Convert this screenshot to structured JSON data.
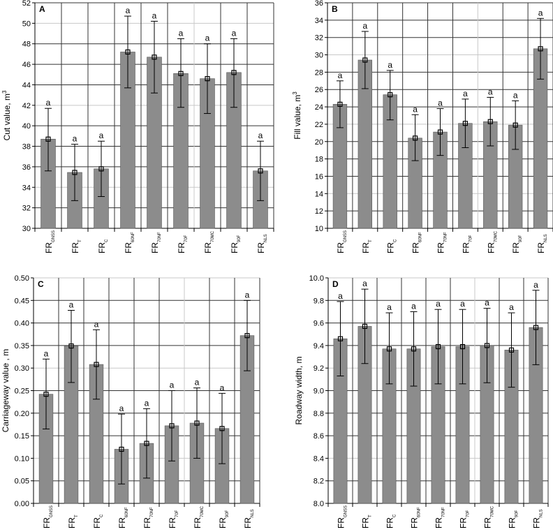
{
  "chart_data": [
    {
      "type": "bar",
      "panel": "A",
      "categories": [
        [
          "FR",
          "GNSS"
        ],
        [
          "FR",
          "T"
        ],
        [
          "FR",
          "C"
        ],
        [
          "FR",
          "60NF"
        ],
        [
          "FR",
          "70NF"
        ],
        [
          "FR",
          "70F"
        ],
        [
          "FR",
          "70MC"
        ],
        [
          "FR",
          "90F"
        ],
        [
          "FR",
          "NLS"
        ]
      ],
      "values": [
        38.7,
        35.45,
        35.8,
        47.2,
        46.7,
        45.1,
        44.6,
        45.2,
        35.6
      ],
      "error_low": [
        35.6,
        32.7,
        33.1,
        43.7,
        43.2,
        41.8,
        41.2,
        41.8,
        32.7
      ],
      "error_high": [
        41.7,
        38.2,
        38.5,
        50.7,
        50.2,
        48.5,
        48.0,
        48.5,
        38.5
      ],
      "group_labels": [
        "a",
        "a",
        "a",
        "a",
        "a",
        "a",
        "a",
        "a",
        "a"
      ],
      "ylabel": "Cut value, m",
      "ylabel_sup": "3",
      "ylim": [
        30,
        52
      ],
      "yticks": [
        30,
        32,
        34,
        36,
        38,
        40,
        42,
        44,
        46,
        48,
        50,
        52
      ],
      "ytick_decimals": 0,
      "grid": true
    },
    {
      "type": "bar",
      "panel": "B",
      "categories": [
        [
          "FR",
          "GNSS"
        ],
        [
          "FR",
          "T"
        ],
        [
          "FR",
          "C"
        ],
        [
          "FR",
          "60NF"
        ],
        [
          "FR",
          "70NF"
        ],
        [
          "FR",
          "70F"
        ],
        [
          "FR",
          "70MC"
        ],
        [
          "FR",
          "90F"
        ],
        [
          "FR",
          "NLS"
        ]
      ],
      "values": [
        24.3,
        29.4,
        25.4,
        20.4,
        21.1,
        22.1,
        22.3,
        21.9,
        30.7
      ],
      "error_low": [
        21.6,
        26.1,
        22.5,
        17.8,
        18.4,
        19.3,
        19.5,
        19.1,
        27.2
      ],
      "error_high": [
        27.0,
        32.7,
        28.2,
        23.1,
        23.8,
        24.9,
        25.1,
        24.7,
        34.2
      ],
      "group_labels": [
        "a",
        "a",
        "a",
        "a",
        "a",
        "a",
        "a",
        "a",
        "a"
      ],
      "ylabel": "Fill value, m",
      "ylabel_sup": "3",
      "ylim": [
        10,
        36
      ],
      "yticks": [
        10,
        12,
        14,
        16,
        18,
        20,
        22,
        24,
        26,
        28,
        30,
        32,
        34,
        36
      ],
      "ytick_decimals": 0,
      "grid": true
    },
    {
      "type": "bar",
      "panel": "C",
      "categories": [
        [
          "FR",
          "GNSS"
        ],
        [
          "FR",
          "T"
        ],
        [
          "FR",
          "C"
        ],
        [
          "FR",
          "60NF"
        ],
        [
          "FR",
          "70NF"
        ],
        [
          "FR",
          "70F"
        ],
        [
          "FR",
          "70MC"
        ],
        [
          "FR",
          "90F"
        ],
        [
          "FR",
          "NLS"
        ]
      ],
      "values": [
        0.242,
        0.349,
        0.308,
        0.12,
        0.133,
        0.172,
        0.178,
        0.166,
        0.372
      ],
      "error_low": [
        0.165,
        0.268,
        0.231,
        0.043,
        0.056,
        0.094,
        0.1,
        0.088,
        0.294
      ],
      "error_high": [
        0.32,
        0.428,
        0.385,
        0.198,
        0.21,
        0.25,
        0.256,
        0.244,
        0.45
      ],
      "group_labels": [
        "a",
        "a",
        "a",
        "a",
        "a",
        "a",
        "a",
        "a",
        "a"
      ],
      "ylabel": "Carriageway value , m",
      "ylabel_sup": "",
      "ylim": [
        0,
        0.5
      ],
      "yticks": [
        0,
        0.05,
        0.1,
        0.15,
        0.2,
        0.25,
        0.3,
        0.35,
        0.4,
        0.45,
        0.5
      ],
      "ytick_decimals": 2,
      "grid": true
    },
    {
      "type": "bar",
      "panel": "D",
      "categories": [
        [
          "FR",
          "GNSS"
        ],
        [
          "FR",
          "T"
        ],
        [
          "FR",
          "C"
        ],
        [
          "FR",
          "60NF"
        ],
        [
          "FR",
          "70NF"
        ],
        [
          "FR",
          "70F"
        ],
        [
          "FR",
          "70MC"
        ],
        [
          "FR",
          "90F"
        ],
        [
          "FR",
          "NLS"
        ]
      ],
      "values": [
        9.46,
        9.57,
        9.37,
        9.37,
        9.39,
        9.39,
        9.4,
        9.36,
        9.56
      ],
      "error_low": [
        9.13,
        9.24,
        9.06,
        9.04,
        9.06,
        9.06,
        9.07,
        9.03,
        9.23
      ],
      "error_high": [
        9.79,
        9.9,
        9.69,
        9.7,
        9.72,
        9.72,
        9.73,
        9.69,
        9.89
      ],
      "group_labels": [
        "a",
        "a",
        "a",
        "a",
        "a",
        "a",
        "a",
        "a",
        "a"
      ],
      "ylabel": "Roadway width, m",
      "ylabel_sup": "",
      "ylim": [
        8.0,
        10.0
      ],
      "yticks": [
        8.0,
        8.2,
        8.4,
        8.6,
        8.8,
        9.0,
        9.2,
        9.4,
        9.6,
        9.8,
        10.0
      ],
      "ytick_decimals": 1,
      "grid": true
    }
  ],
  "colors": {
    "bar": "#8c8c8c",
    "bar_edge": "#555555",
    "grid": "#333333",
    "grid_light": "#c8c8c8"
  }
}
